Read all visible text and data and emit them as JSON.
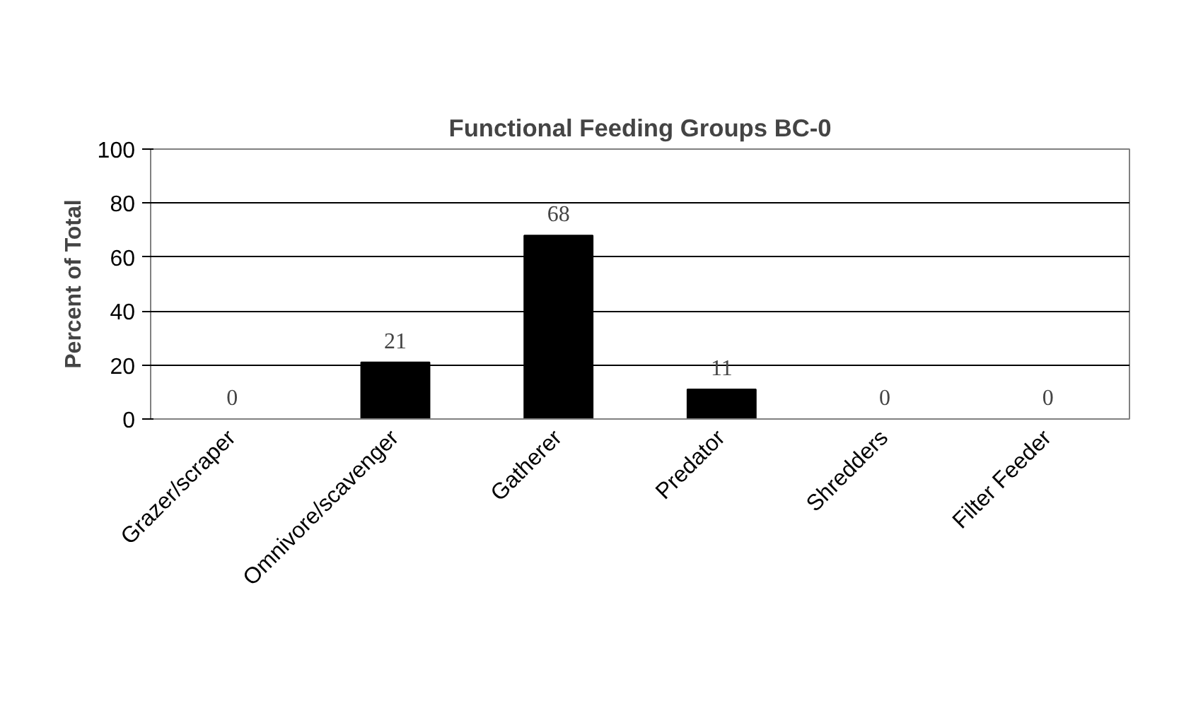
{
  "chart_data": {
    "type": "bar",
    "title": "Functional Feeding Groups BC-0",
    "ylabel": "Percent of Total",
    "categories": [
      "Grazer/scraper",
      "Omnivore/scavenger",
      "Gatherer",
      "Predator",
      "Shredders",
      "Filter Feeder"
    ],
    "values": [
      0,
      21,
      68,
      11,
      0,
      0
    ],
    "color": "#000000",
    "ylim": [
      0,
      100
    ],
    "yticks": [
      0,
      20,
      40,
      60,
      80,
      100
    ],
    "grid": "y",
    "data_labels": true
  }
}
